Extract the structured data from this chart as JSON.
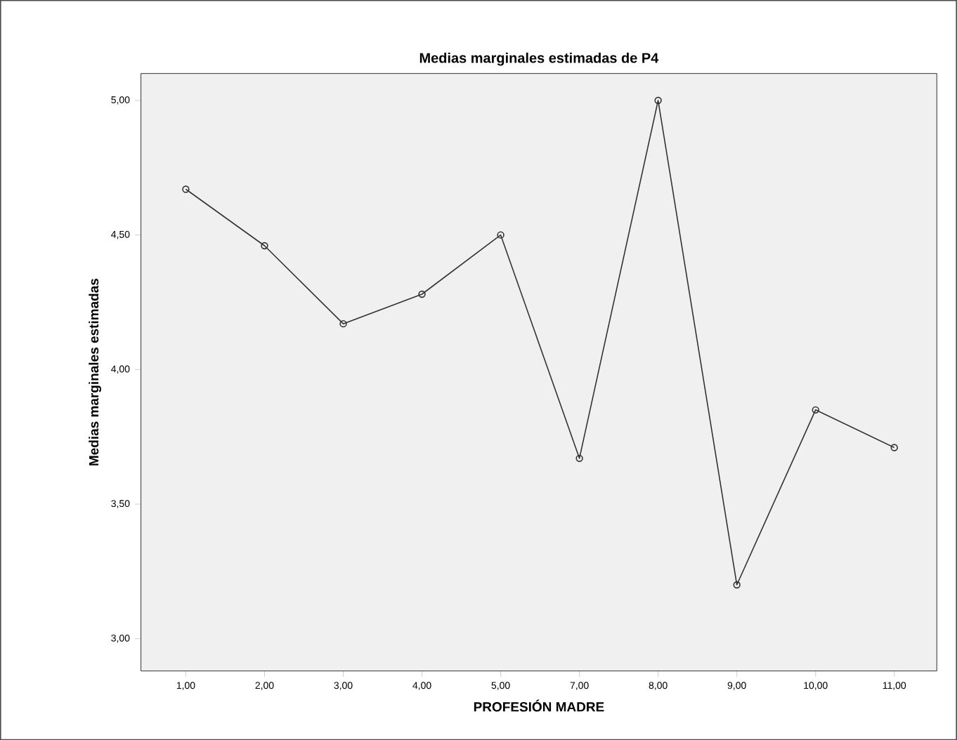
{
  "chart_data": {
    "type": "line",
    "title": "Medias marginales estimadas de P4",
    "xlabel": "PROFESIÓN MADRE",
    "ylabel": "Medias marginales estimadas",
    "categories": [
      "1,00",
      "2,00",
      "3,00",
      "4,00",
      "5,00",
      "7,00",
      "8,00",
      "9,00",
      "10,00",
      "11,00"
    ],
    "series": [
      {
        "color": "#333333",
        "values": [
          4.67,
          4.46,
          4.17,
          4.28,
          4.5,
          3.67,
          5.0,
          3.2,
          3.85,
          3.71
        ]
      }
    ],
    "ylim": [
      2.88,
      5.1
    ],
    "yticks": [
      {
        "value": 3,
        "label": "3,00"
      },
      {
        "value": 3.5,
        "label": "3,50"
      },
      {
        "value": 4,
        "label": "4,00"
      },
      {
        "value": 4.5,
        "label": "4,50"
      },
      {
        "value": 5,
        "label": "5,00"
      }
    ],
    "marker": "circle",
    "line_style": "solid",
    "grid": false
  }
}
